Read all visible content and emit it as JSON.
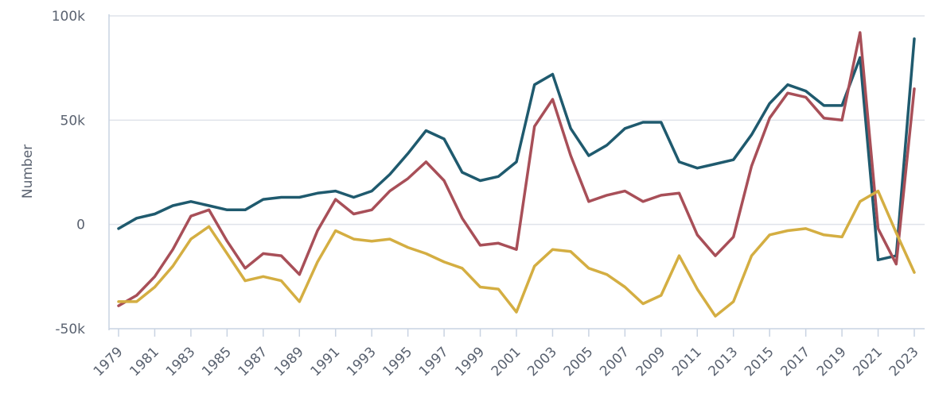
{
  "chart_data": {
    "type": "line",
    "title": "",
    "xlabel": "",
    "ylabel": "Number",
    "ylim": [
      -50000,
      100000
    ],
    "yticks": [
      {
        "value": -50000,
        "label": "-50k"
      },
      {
        "value": 0,
        "label": "0"
      },
      {
        "value": 50000,
        "label": "50k"
      },
      {
        "value": 100000,
        "label": "100k"
      }
    ],
    "x": [
      1979,
      1980,
      1981,
      1982,
      1983,
      1984,
      1985,
      1986,
      1987,
      1988,
      1989,
      1990,
      1991,
      1992,
      1993,
      1994,
      1995,
      1996,
      1997,
      1998,
      1999,
      2000,
      2001,
      2002,
      2003,
      2004,
      2005,
      2006,
      2007,
      2008,
      2009,
      2010,
      2011,
      2012,
      2013,
      2014,
      2015,
      2016,
      2017,
      2018,
      2019,
      2020,
      2021,
      2022,
      2023
    ],
    "xticks": [
      1979,
      1981,
      1983,
      1985,
      1987,
      1989,
      1991,
      1993,
      1995,
      1997,
      1999,
      2001,
      2003,
      2005,
      2007,
      2009,
      2011,
      2013,
      2015,
      2017,
      2019,
      2021,
      2023
    ],
    "grid": {
      "horizontal": true,
      "vertical": false
    },
    "series": [
      {
        "color": "#1f5a6e",
        "values": [
          -2000,
          3000,
          5000,
          9000,
          11000,
          9000,
          7000,
          7000,
          12000,
          13000,
          13000,
          15000,
          16000,
          13000,
          16000,
          24000,
          34000,
          45000,
          41000,
          25000,
          21000,
          23000,
          30000,
          67000,
          72000,
          46000,
          33000,
          38000,
          46000,
          49000,
          49000,
          30000,
          27000,
          29000,
          31000,
          43000,
          58000,
          67000,
          64000,
          57000,
          57000,
          80000,
          -17000,
          -15000,
          89000
        ]
      },
      {
        "color": "#a84f58",
        "values": [
          -39000,
          -34000,
          -25000,
          -12000,
          4000,
          7000,
          -8000,
          -21000,
          -14000,
          -15000,
          -24000,
          -3000,
          12000,
          5000,
          7000,
          16000,
          22000,
          30000,
          21000,
          3000,
          -10000,
          -9000,
          -12000,
          47000,
          60000,
          33000,
          11000,
          14000,
          16000,
          11000,
          14000,
          15000,
          -5000,
          -15000,
          -6000,
          28000,
          51000,
          63000,
          61000,
          51000,
          50000,
          92000,
          -2000,
          -19000,
          65000
        ]
      },
      {
        "color": "#d4ae42",
        "values": [
          -37000,
          -37000,
          -30000,
          -20000,
          -7000,
          -1000,
          -14000,
          -27000,
          -25000,
          -27000,
          -37000,
          -18000,
          -3000,
          -7000,
          -8000,
          -7000,
          -11000,
          -14000,
          -18000,
          -21000,
          -30000,
          -31000,
          -42000,
          -20000,
          -12000,
          -13000,
          -21000,
          -24000,
          -30000,
          -38000,
          -34000,
          -15000,
          -31000,
          -44000,
          -37000,
          -15000,
          -5000,
          -3000,
          -2000,
          -5000,
          -6000,
          11000,
          16000,
          -4000,
          -23000
        ]
      }
    ]
  }
}
